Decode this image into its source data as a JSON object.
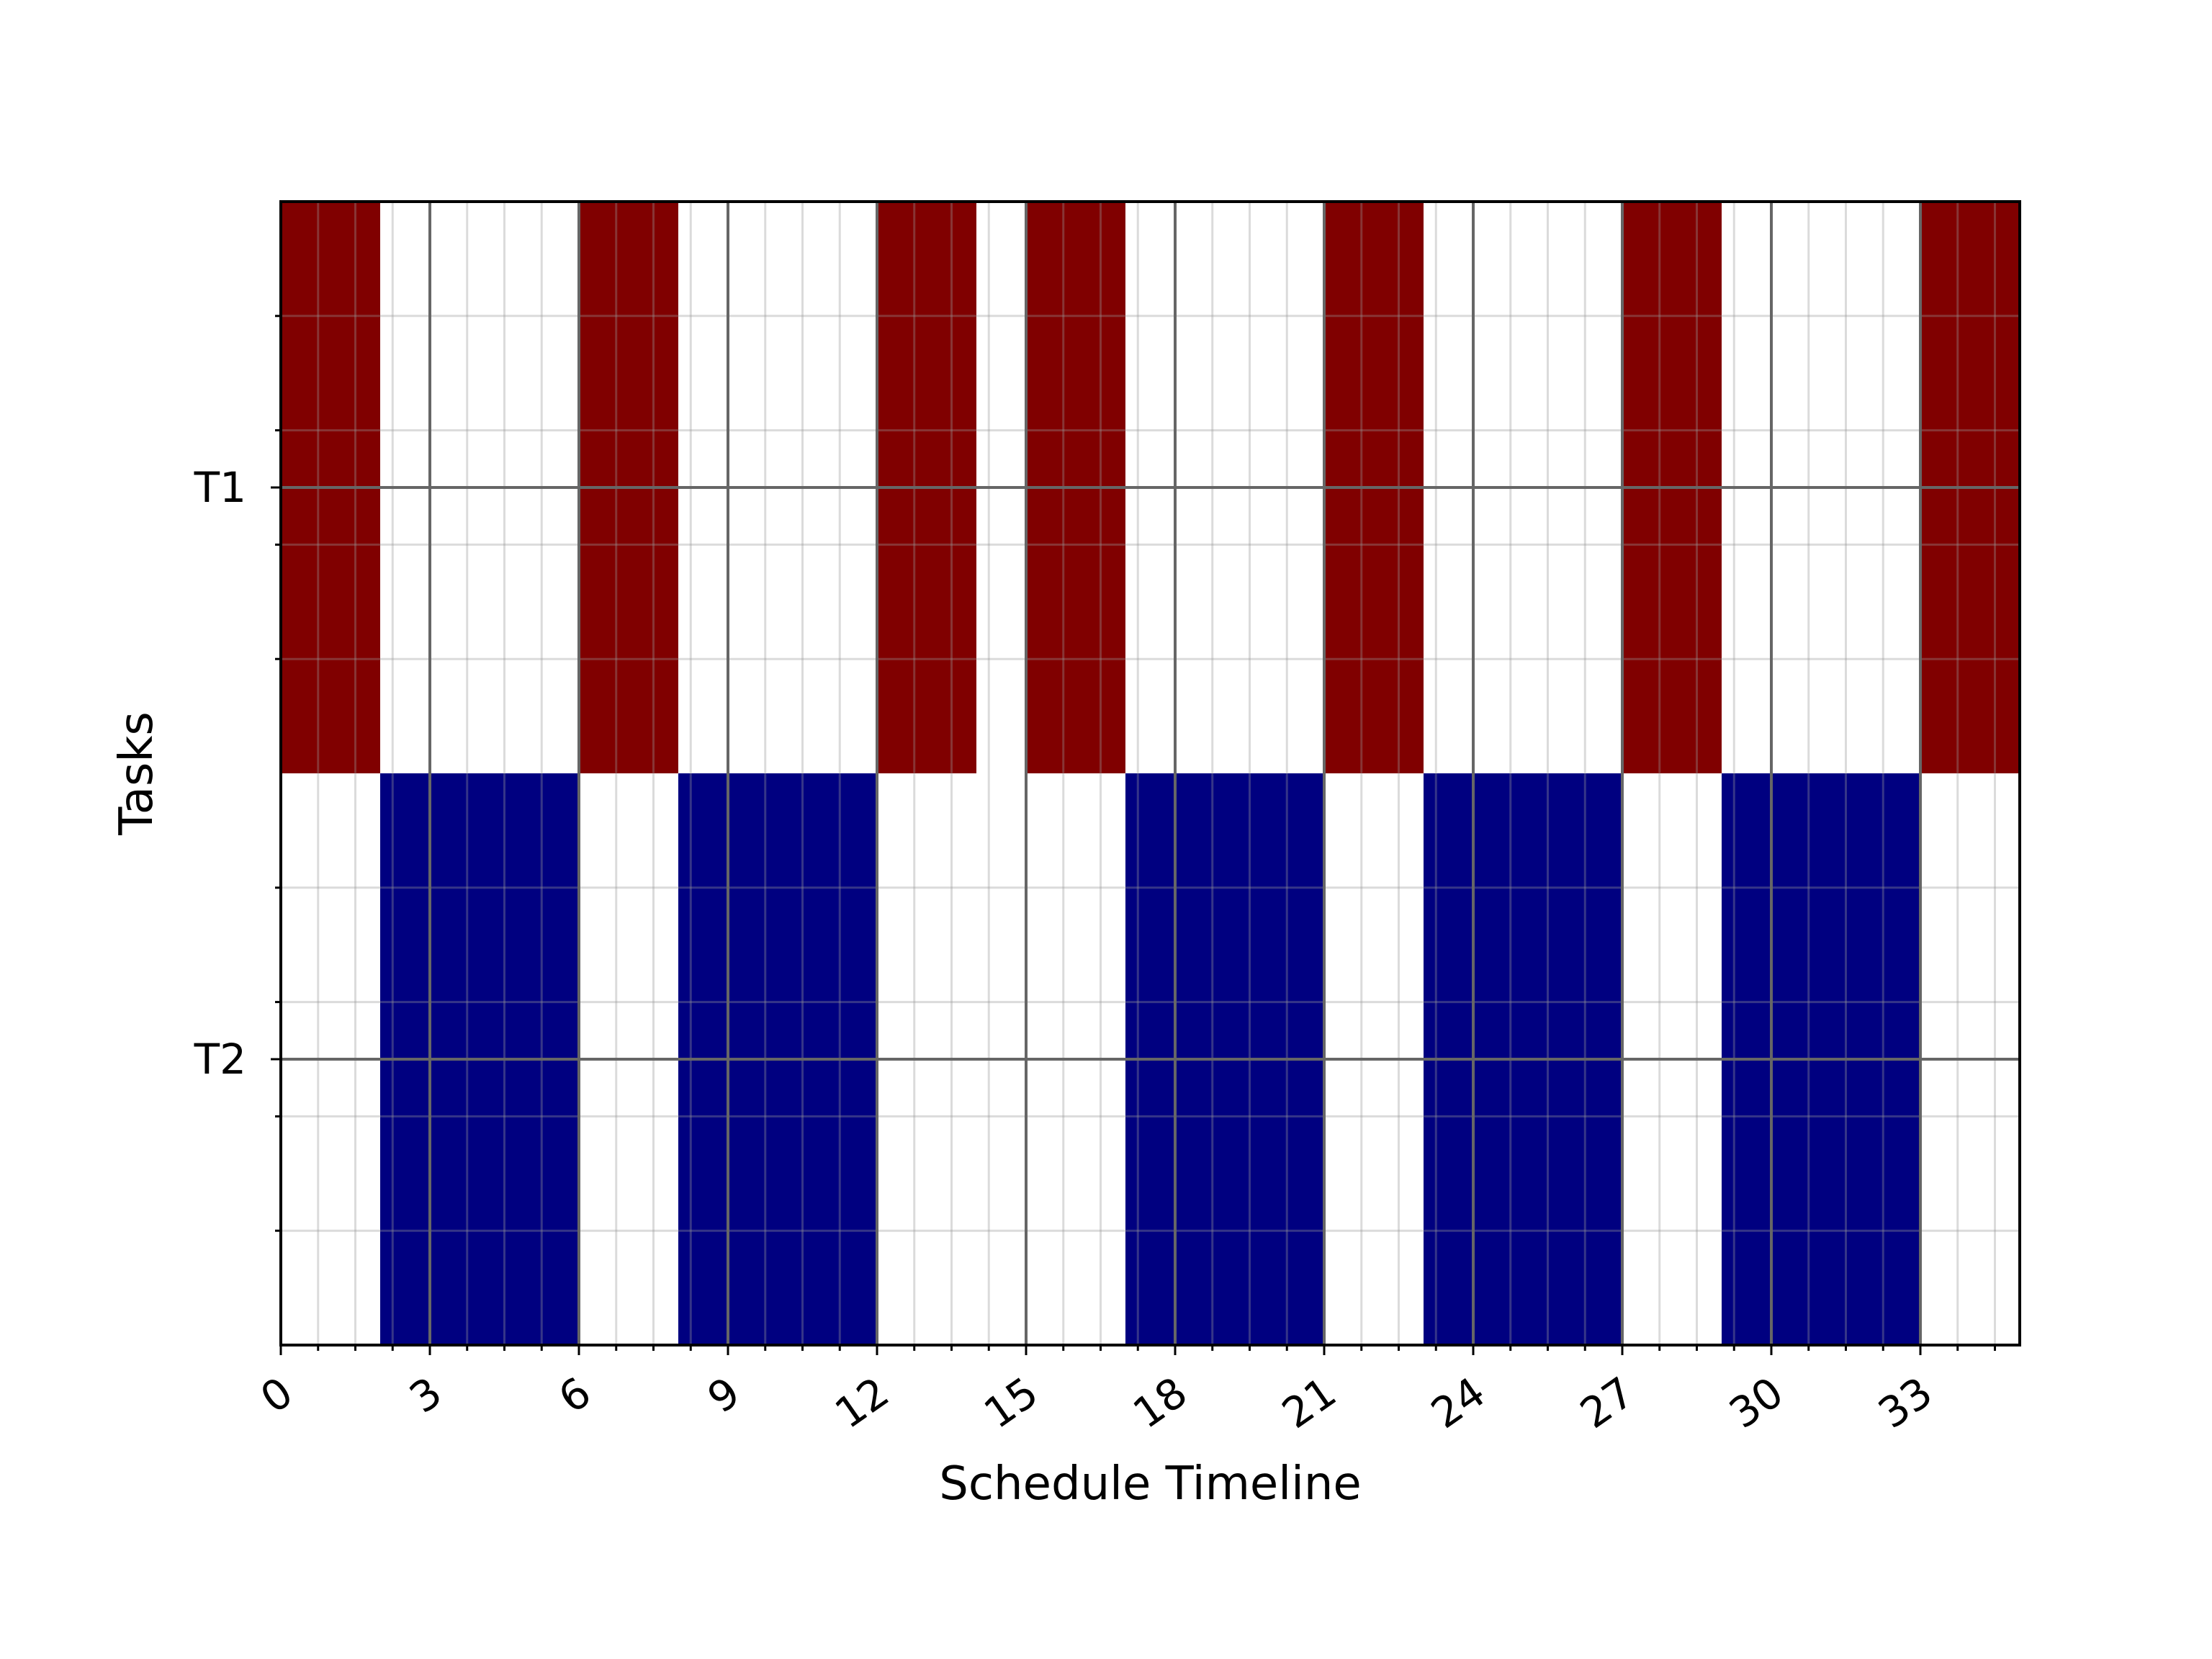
{
  "chart_data": {
    "type": "gantt",
    "xlabel": "Schedule Timeline",
    "ylabel": "Tasks",
    "xlim": [
      0,
      35
    ],
    "x_ticks": [
      0,
      3,
      6,
      9,
      12,
      15,
      18,
      21,
      24,
      27,
      30,
      33
    ],
    "x_minor_step": 0.75,
    "y_ticks": [
      "T1",
      "T2"
    ],
    "grid": true,
    "series": [
      {
        "name": "T1",
        "color": "#800000",
        "intervals": [
          [
            0,
            2
          ],
          [
            6,
            8
          ],
          [
            12,
            14
          ],
          [
            15,
            17
          ],
          [
            21,
            23
          ],
          [
            27,
            29
          ],
          [
            33,
            35
          ]
        ]
      },
      {
        "name": "T2",
        "color": "#000080",
        "intervals": [
          [
            2,
            6
          ],
          [
            8,
            12
          ],
          [
            17,
            21
          ],
          [
            23,
            27
          ],
          [
            29,
            33
          ]
        ]
      }
    ]
  }
}
